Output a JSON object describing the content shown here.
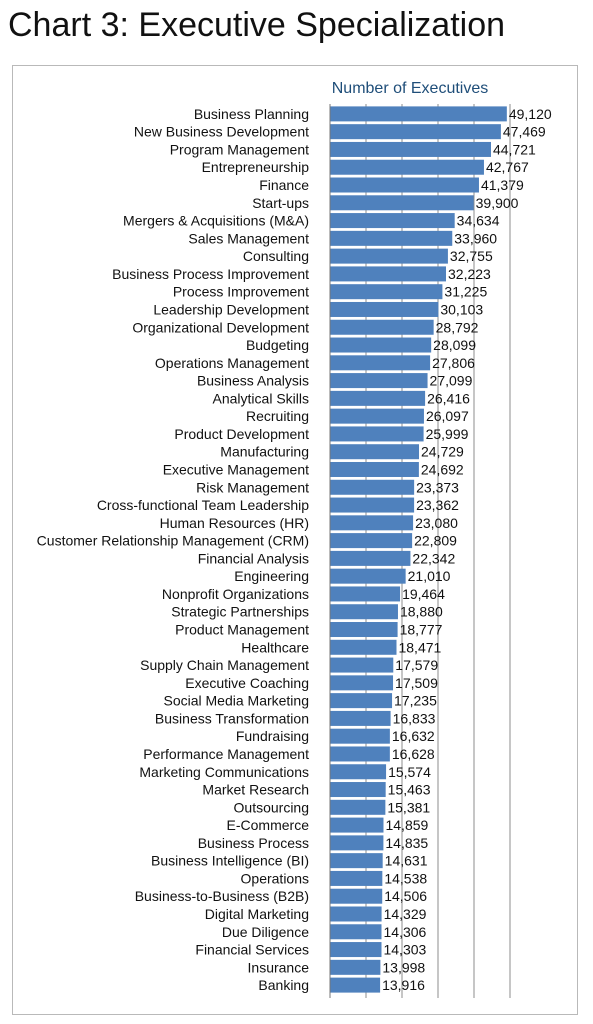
{
  "page_title": "Chart 3: Executive Specialization",
  "chart_data": {
    "type": "bar",
    "orientation": "horizontal",
    "xlabel": "Number of Executives",
    "xlim": [
      0,
      50000
    ],
    "grid": true,
    "bar_color": "#4f81bd",
    "categories": [
      "Business Planning",
      "New Business Development",
      "Program Management",
      "Entrepreneurship",
      "Finance",
      "Start-ups",
      "Mergers & Acquisitions (M&A)",
      "Sales Management",
      "Consulting",
      "Business Process Improvement",
      "Process Improvement",
      "Leadership Development",
      "Organizational Development",
      "Budgeting",
      "Operations Management",
      "Business Analysis",
      "Analytical Skills",
      "Recruiting",
      "Product Development",
      "Manufacturing",
      "Executive Management",
      "Risk Management",
      "Cross-functional Team Leadership",
      "Human Resources (HR)",
      "Customer Relationship Management (CRM)",
      "Financial Analysis",
      "Engineering",
      "Nonprofit Organizations",
      "Strategic Partnerships",
      "Product Management",
      "Healthcare",
      "Supply Chain Management",
      "Executive Coaching",
      "Social Media Marketing",
      "Business Transformation",
      "Fundraising",
      "Performance Management",
      "Marketing Communications",
      "Market Research",
      "Outsourcing",
      "E-Commerce",
      "Business Process",
      "Business Intelligence (BI)",
      "Operations",
      "Business-to-Business (B2B)",
      "Digital Marketing",
      "Due Diligence",
      "Financial Services",
      "Insurance",
      "Banking"
    ],
    "values": [
      49120,
      47469,
      44721,
      42767,
      41379,
      39900,
      34634,
      33960,
      32755,
      32223,
      31225,
      30103,
      28792,
      28099,
      27806,
      27099,
      26416,
      26097,
      25999,
      24729,
      24692,
      23373,
      23362,
      23080,
      22809,
      22342,
      21010,
      19464,
      18880,
      18777,
      18471,
      17579,
      17509,
      17235,
      16833,
      16632,
      16628,
      15574,
      15463,
      15381,
      14859,
      14835,
      14631,
      14538,
      14506,
      14329,
      14306,
      14303,
      13998,
      13916
    ],
    "value_labels": [
      "49,120",
      "47,469",
      "44,721",
      "42,767",
      "41,379",
      "39,900",
      "34,634",
      "33,960",
      "32,755",
      "32,223",
      "31,225",
      "30,103",
      "28,792",
      "28,099",
      "27,806",
      "27,099",
      "26,416",
      "26,097",
      "25,999",
      "24,729",
      "24,692",
      "23,373",
      "23,362",
      "23,080",
      "22,809",
      "22,342",
      "21,010",
      "19,464",
      "18,880",
      "18,777",
      "18,471",
      "17,579",
      "17,509",
      "17,235",
      "16,833",
      "16,632",
      "16,628",
      "15,574",
      "15,463",
      "15,381",
      "14,859",
      "14,835",
      "14,631",
      "14,538",
      "14,506",
      "14,329",
      "14,306",
      "14,303",
      "13,998",
      "13,916"
    ]
  }
}
